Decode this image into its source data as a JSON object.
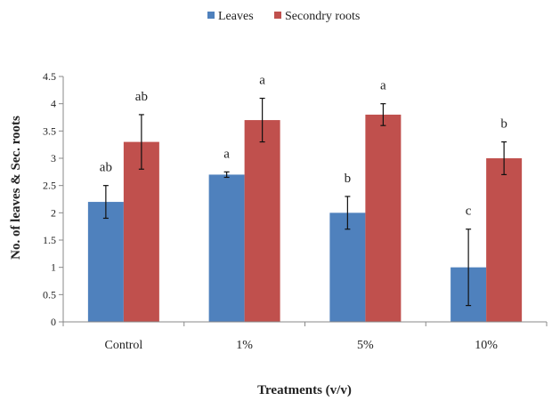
{
  "chart_data": {
    "type": "bar",
    "xlabel": "Treatments (v/v)",
    "ylabel": "No. of leaves & Sec. roots",
    "categories": [
      "Control",
      "1%",
      "5%",
      "10%"
    ],
    "ylim": [
      0,
      4.5
    ],
    "yticks": [
      "0",
      "0.5",
      "1",
      "1.5",
      "2",
      "2.5",
      "3",
      "3.5",
      "4",
      "4.5"
    ],
    "grid": false,
    "legend_position": "top-center",
    "series": [
      {
        "name": "Leaves",
        "color": "#4f81bd",
        "values": [
          2.2,
          2.7,
          2.0,
          1.0
        ],
        "errors": [
          0.3,
          0.05,
          0.3,
          0.7
        ],
        "labels": [
          "ab",
          "a",
          "b",
          "c"
        ]
      },
      {
        "name": "Secondry roots",
        "color": "#c0504d",
        "values": [
          3.3,
          3.7,
          3.8,
          3.0
        ],
        "errors": [
          0.5,
          0.4,
          0.2,
          0.3
        ],
        "labels": [
          "ab",
          "a",
          "a",
          "b"
        ]
      }
    ]
  }
}
